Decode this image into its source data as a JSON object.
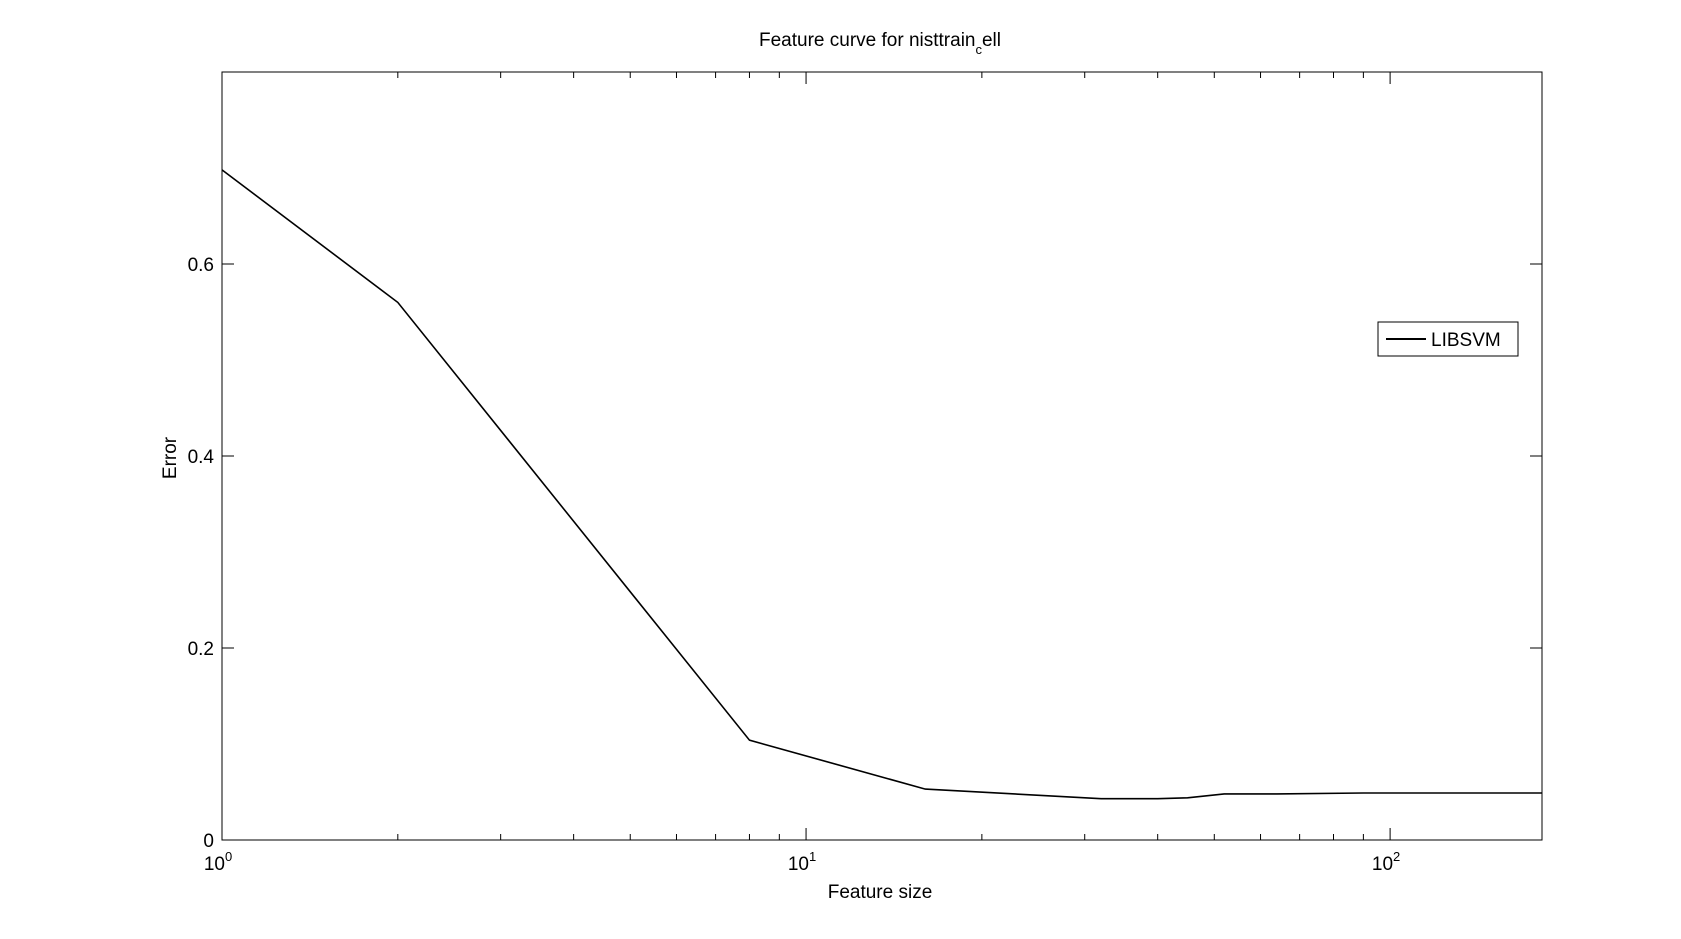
{
  "chart_data": {
    "type": "line",
    "title": "Feature curve for nisttrain",
    "title_subscript": "c",
    "title_suffix": "ell",
    "xlabel": "Feature size",
    "ylabel": "Error",
    "xscale": "log",
    "xlim": [
      1,
      182
    ],
    "ylim": [
      0,
      0.8
    ],
    "xticks": [
      {
        "value": 1,
        "base": "10",
        "exp": "0"
      },
      {
        "value": 10,
        "base": "10",
        "exp": "1"
      },
      {
        "value": 100,
        "base": "10",
        "exp": "2"
      }
    ],
    "yticks": [
      {
        "value": 0,
        "label": "0"
      },
      {
        "value": 0.2,
        "label": "0.2"
      },
      {
        "value": 0.4,
        "label": "0.4"
      },
      {
        "value": 0.6,
        "label": "0.6"
      }
    ],
    "grid": false,
    "legend_position": "right",
    "series": [
      {
        "name": "LIBSVM",
        "color": "#000000",
        "x": [
          1,
          2,
          8,
          16,
          32,
          40,
          45,
          52,
          64,
          90,
          128,
          182
        ],
        "y": [
          0.698,
          0.56,
          0.104,
          0.053,
          0.043,
          0.043,
          0.044,
          0.048,
          0.048,
          0.049,
          0.049,
          0.049
        ]
      }
    ]
  }
}
